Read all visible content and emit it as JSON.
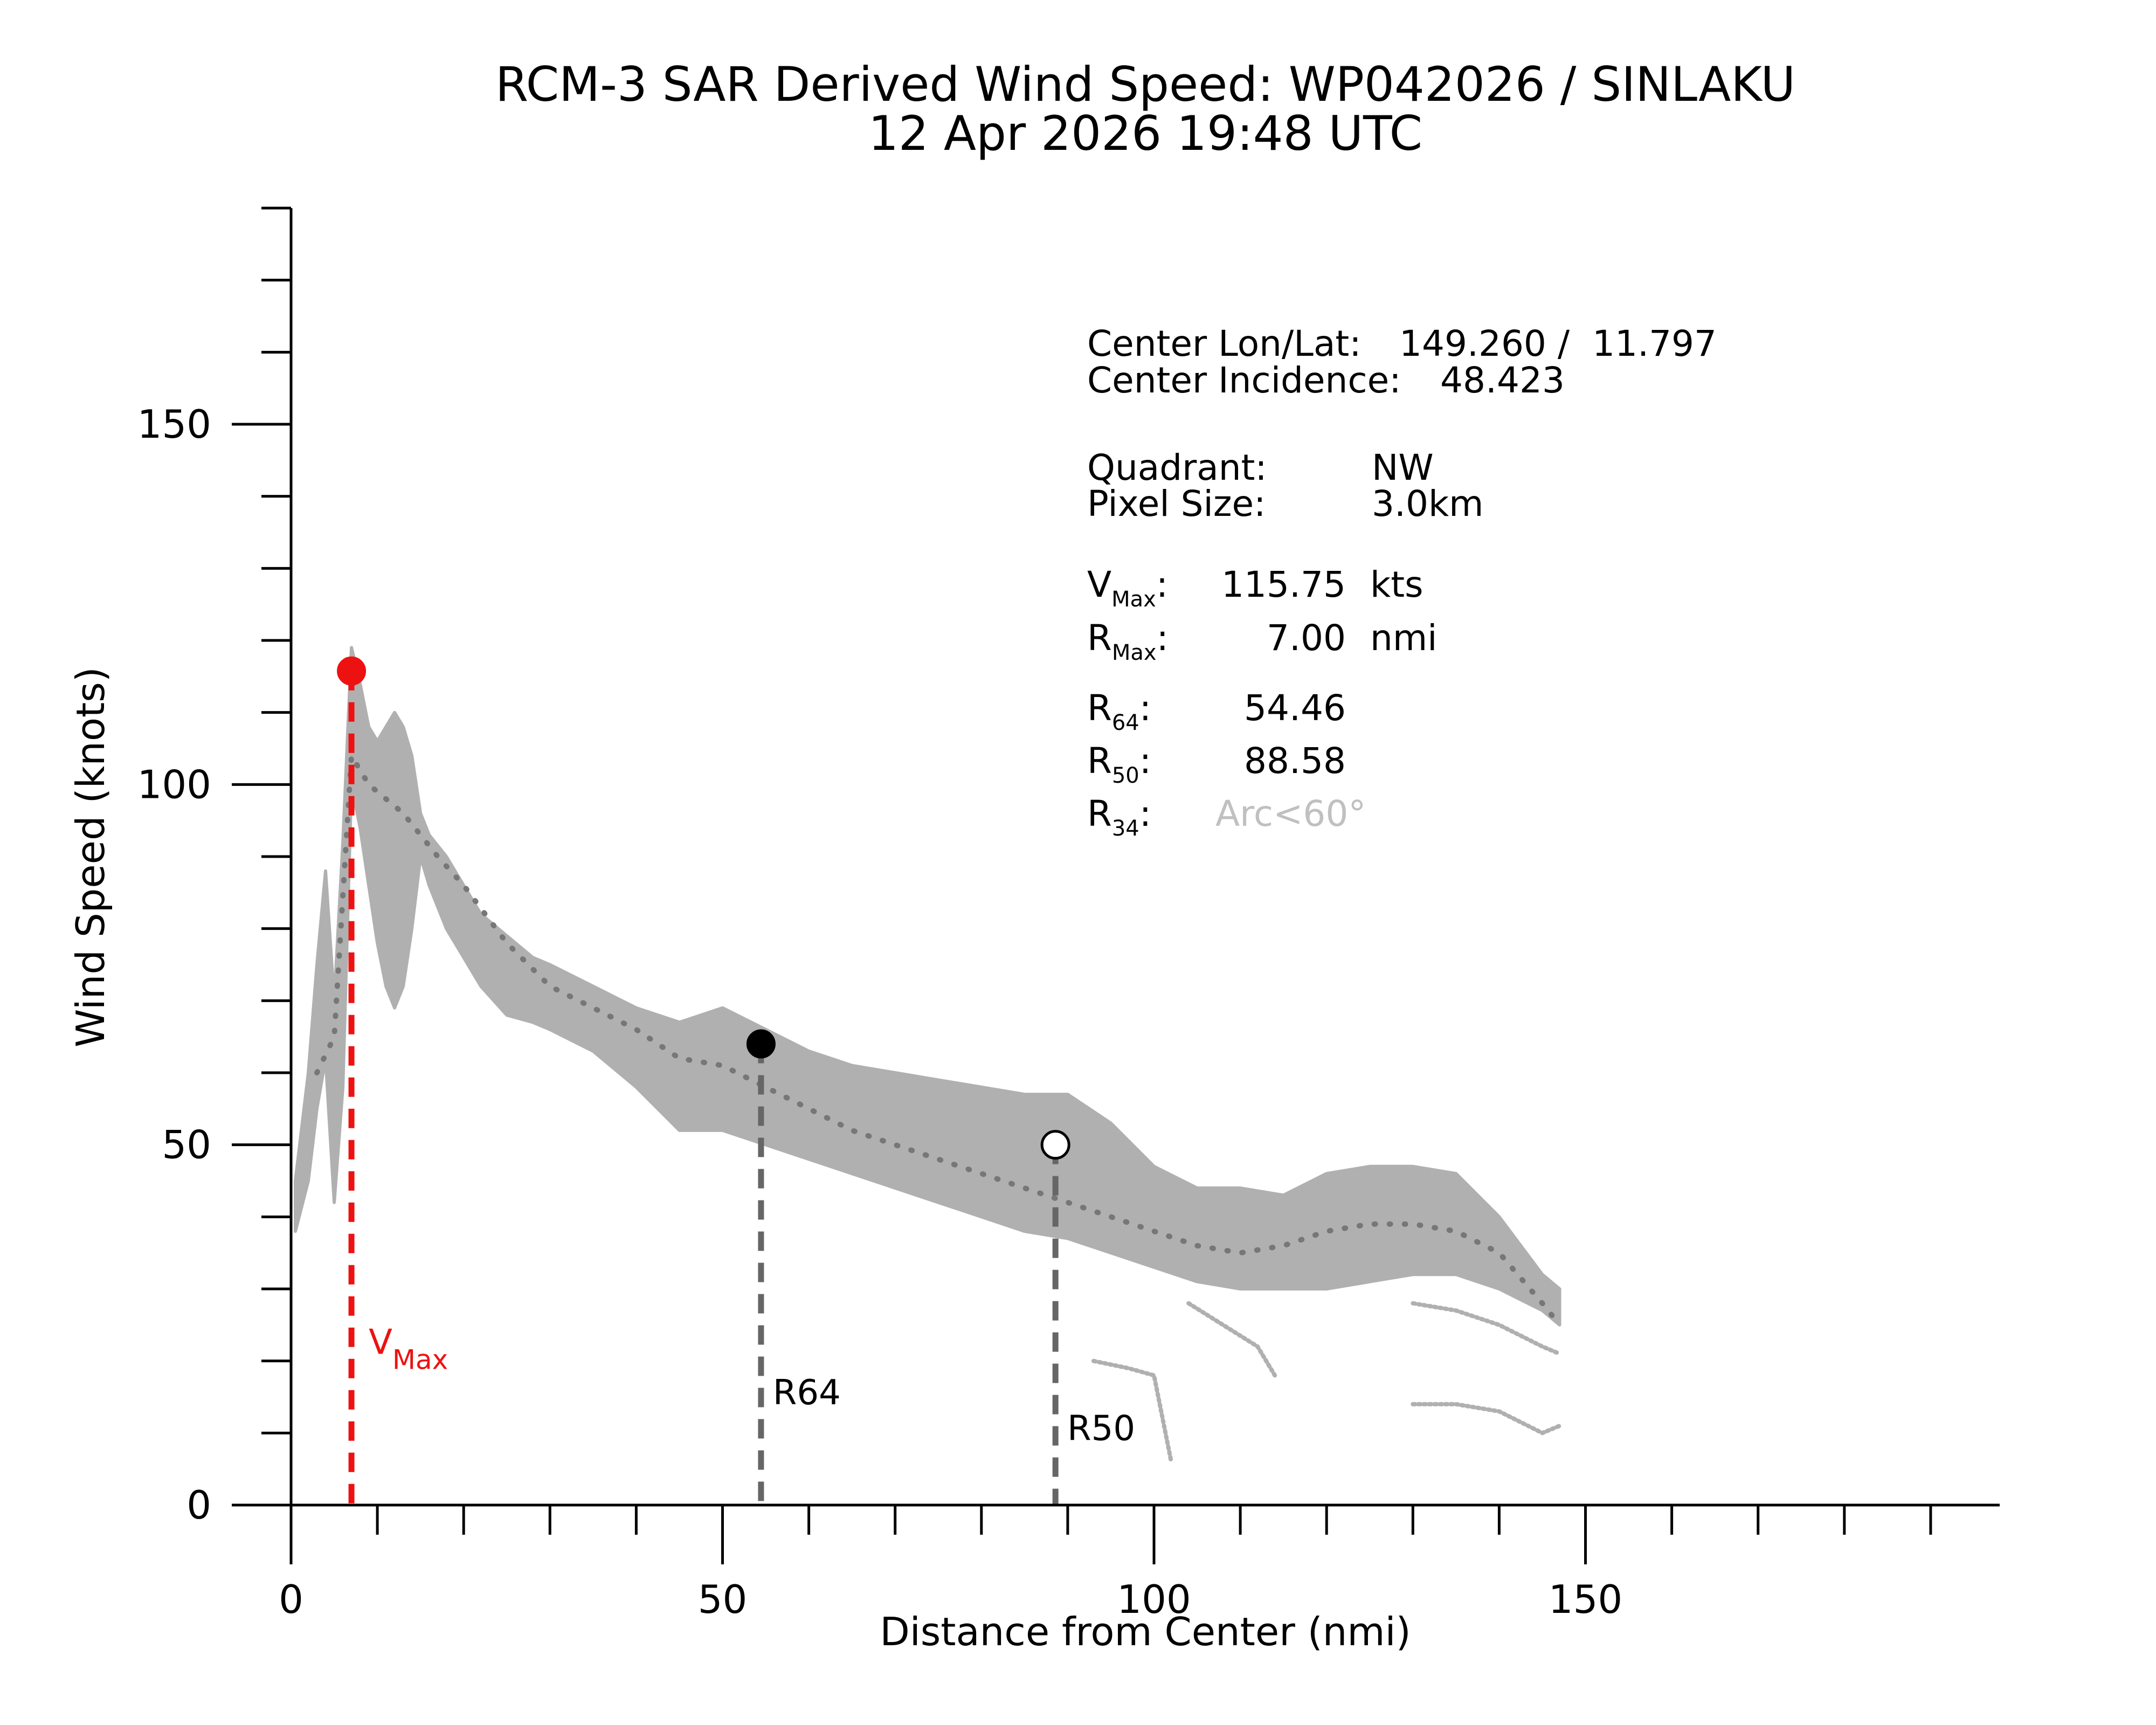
{
  "chart_data": {
    "type": "scatter",
    "title": "RCM-3 SAR Derived Wind Speed: WP042026 / SINLAKU",
    "subtitle": "12 Apr 2026 19:48 UTC",
    "xlabel": "Distance from Center (nmi)",
    "ylabel": "Wind Speed (knots)",
    "xlim": [
      0,
      198
    ],
    "ylim": [
      0,
      180
    ],
    "x_ticks": [
      0,
      50,
      100,
      150
    ],
    "y_ticks": [
      0,
      50,
      100,
      150
    ],
    "x_tick_labels": [
      "0",
      "50",
      "100",
      "150"
    ],
    "y_tick_labels": [
      "0",
      "50",
      "100",
      "150"
    ],
    "x_minor_step": 10,
    "y_minor_step": 10,
    "grid": false,
    "colors": {
      "scatter": "#b0b0b0",
      "mean_profile": "#777777",
      "vmax": "#ee1111",
      "radius_lines": "#666666",
      "r64_marker": "#000000",
      "r50_marker": "#ffffff",
      "r34_unavailable": "#c0c0c0"
    },
    "scatter_band": {
      "x": [
        0.5,
        2,
        3,
        4,
        5,
        6,
        7,
        8,
        9,
        10,
        11,
        12,
        13,
        14,
        15,
        16,
        18,
        20,
        22,
        25,
        28,
        30,
        35,
        40,
        45,
        50,
        55,
        60,
        65,
        70,
        75,
        80,
        85,
        90,
        95,
        100,
        105,
        110,
        115,
        120,
        125,
        130,
        135,
        140,
        145,
        147
      ],
      "y_low": [
        38,
        45,
        55,
        62,
        42,
        58,
        100,
        94,
        86,
        78,
        72,
        69,
        72,
        80,
        90,
        86,
        80,
        76,
        72,
        68,
        67,
        66,
        63,
        58,
        52,
        52,
        50,
        48,
        46,
        44,
        42,
        40,
        38,
        37,
        35,
        33,
        31,
        30,
        30,
        30,
        31,
        32,
        32,
        30,
        27,
        25
      ],
      "y_high": [
        45,
        60,
        75,
        88,
        70,
        92,
        119,
        114,
        108,
        106,
        108,
        110,
        108,
        104,
        96,
        93,
        90,
        86,
        82,
        79,
        76,
        75,
        72,
        69,
        67,
        69,
        66,
        63,
        61,
        60,
        59,
        58,
        57,
        57,
        53,
        47,
        44,
        44,
        43,
        46,
        47,
        47,
        46,
        40,
        32,
        30
      ]
    },
    "outlier_tails": [
      {
        "x": [
          93,
          97,
          100,
          101,
          102
        ],
        "y": [
          20,
          19,
          18,
          12,
          6
        ]
      },
      {
        "x": [
          104,
          108,
          112,
          114
        ],
        "y": [
          28,
          25,
          22,
          18
        ]
      },
      {
        "x": [
          130,
          135,
          140,
          145,
          147
        ],
        "y": [
          14,
          14,
          13,
          10,
          11
        ]
      },
      {
        "x": [
          130,
          135,
          140,
          145,
          147
        ],
        "y": [
          28,
          27,
          25,
          22,
          21
        ]
      }
    ],
    "mean_profile": {
      "x": [
        3,
        5,
        7,
        9,
        11,
        13,
        15,
        17,
        20,
        25,
        30,
        35,
        40,
        45,
        50,
        55,
        60,
        65,
        70,
        75,
        80,
        85,
        90,
        95,
        100,
        105,
        110,
        115,
        120,
        125,
        130,
        135,
        140,
        145,
        147
      ],
      "y": [
        60,
        65,
        104,
        100,
        98,
        96,
        93,
        90,
        86,
        78,
        72,
        69,
        66,
        62,
        61,
        58,
        55,
        52,
        50,
        48,
        46,
        44,
        42,
        40,
        38,
        36,
        35,
        36,
        38,
        39,
        39,
        38,
        35,
        28,
        25
      ]
    },
    "vmax": {
      "label": "V",
      "label_sub": "Max",
      "x": 7.0,
      "y": 115.75
    },
    "r64": {
      "label": "R64",
      "x": 54.46,
      "y": 64
    },
    "r50": {
      "label": "R50",
      "x": 88.58,
      "y": 50
    }
  },
  "info_panel": {
    "center_lonlat_label": "Center Lon/Lat:",
    "center_lonlat_value": "149.260 /  11.797",
    "center_incidence_label": "Center Incidence:",
    "center_incidence_value": "48.423",
    "quadrant_label": "Quadrant:",
    "quadrant_value": "NW",
    "pixel_size_label": "Pixel Size:",
    "pixel_size_value": "3.0km",
    "vmax_sym": "V",
    "vmax_sub": "Max",
    "vmax_value": "115.75",
    "vmax_unit": "kts",
    "rmax_sym": "R",
    "rmax_sub": "Max",
    "rmax_value": "7.00",
    "rmax_unit": "nmi",
    "r64_sym": "R",
    "r64_sub": "64",
    "r64_value": "54.46",
    "r50_sym": "R",
    "r50_sub": "50",
    "r50_value": "88.58",
    "r34_sym": "R",
    "r34_sub": "34",
    "r34_value": "Arc<60°",
    "colon": ":"
  }
}
